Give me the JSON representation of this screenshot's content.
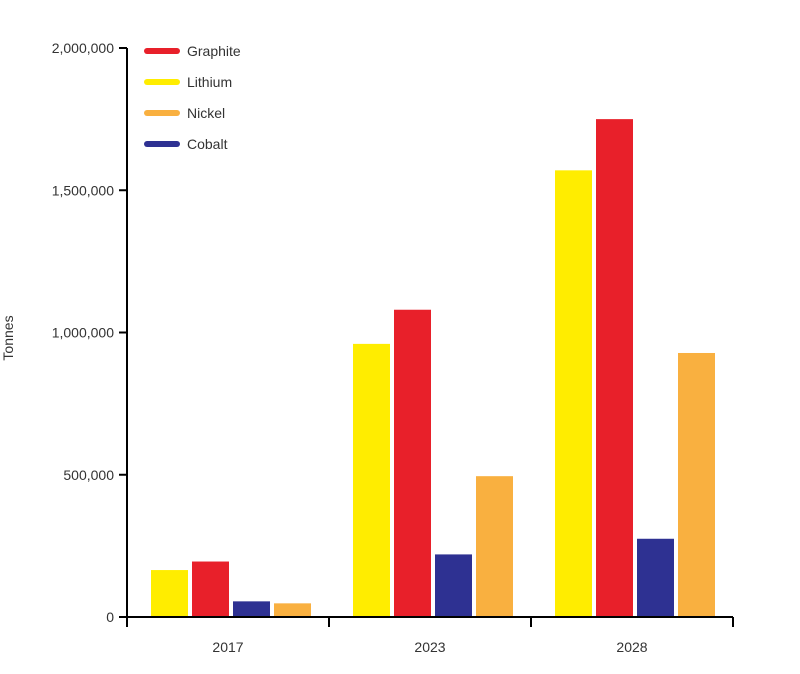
{
  "chart_data": {
    "type": "bar",
    "title": "",
    "xlabel": "",
    "ylabel": "Tonnes",
    "ylim": [
      0,
      2000000
    ],
    "yticks": [
      0,
      500000,
      1000000,
      1500000,
      2000000
    ],
    "ytick_labels": [
      "0",
      "500,000",
      "1,000,000",
      "1,500,000",
      "2,000,000"
    ],
    "categories": [
      "2017",
      "2023",
      "2028"
    ],
    "bar_order": [
      "Lithium",
      "Graphite",
      "Cobalt",
      "Nickel"
    ],
    "legend_order": [
      "Graphite",
      "Lithium",
      "Nickel",
      "Cobalt"
    ],
    "legend_position": "top-left",
    "grid": false,
    "series": [
      {
        "name": "Lithium",
        "color": "#FFED00",
        "values": [
          165000,
          960000,
          1570000
        ]
      },
      {
        "name": "Graphite",
        "color": "#E8202A",
        "values": [
          195000,
          1080000,
          1750000
        ]
      },
      {
        "name": "Cobalt",
        "color": "#2E3192",
        "values": [
          55000,
          220000,
          275000
        ]
      },
      {
        "name": "Nickel",
        "color": "#F9B040",
        "values": [
          48000,
          495000,
          928000
        ]
      }
    ]
  }
}
